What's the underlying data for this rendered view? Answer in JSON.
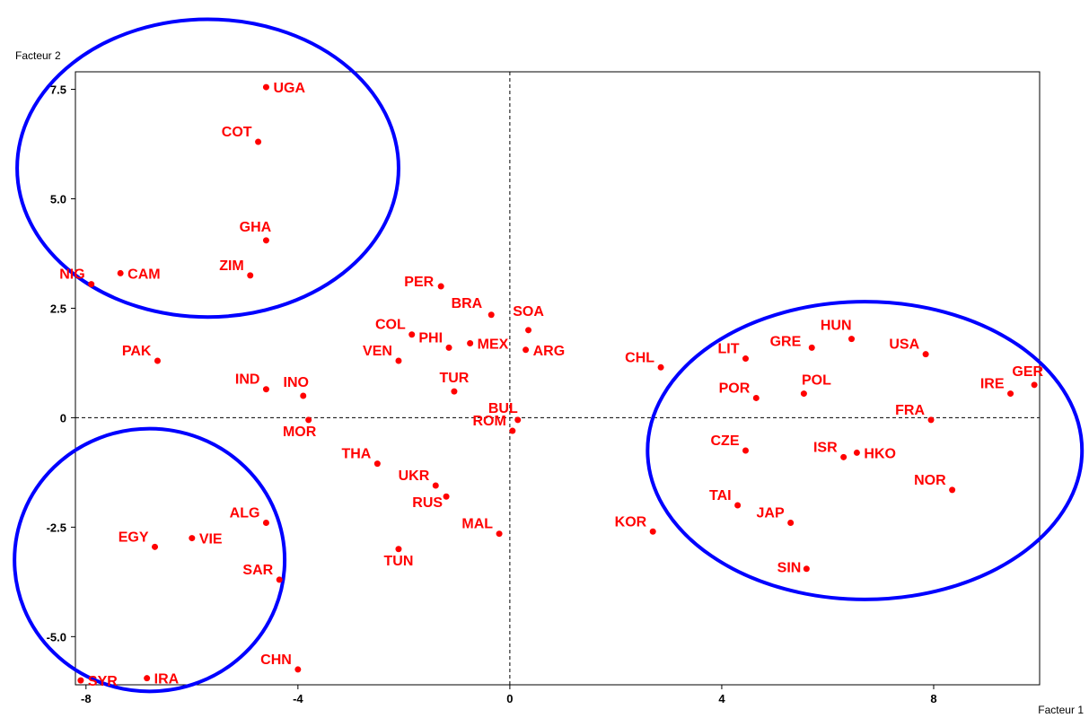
{
  "chart_data": {
    "type": "scatter",
    "title": "",
    "xlabel": "Facteur 1",
    "ylabel": "Facteur 2",
    "xlim": [
      -8.2,
      10
    ],
    "ylim": [
      -6.1,
      7.9
    ],
    "x_ticks": [
      -8,
      -4,
      0,
      4,
      8
    ],
    "x_tick_labels": [
      "-8",
      "-4",
      "0",
      "4",
      "8"
    ],
    "y_ticks": [
      -5,
      -2.5,
      0,
      2.5,
      5,
      7.5
    ],
    "y_tick_labels": [
      "-5.0",
      "-2.5",
      "0",
      "2.5",
      "5.0",
      "7.5"
    ],
    "reference_lines": {
      "x": 0,
      "y": 0,
      "style": "dashed"
    },
    "point_color": "#ff0000",
    "points": [
      {
        "label": "UGA",
        "x": -4.6,
        "y": 7.55
      },
      {
        "label": "COT",
        "x": -4.75,
        "y": 6.3
      },
      {
        "label": "GHA",
        "x": -4.6,
        "y": 4.05
      },
      {
        "label": "ZIM",
        "x": -4.9,
        "y": 3.25
      },
      {
        "label": "CAM",
        "x": -7.35,
        "y": 3.3
      },
      {
        "label": "NIG",
        "x": -7.9,
        "y": 3.05
      },
      {
        "label": "PAK",
        "x": -6.65,
        "y": 1.3
      },
      {
        "label": "IND",
        "x": -4.6,
        "y": 0.65
      },
      {
        "label": "INO",
        "x": -3.9,
        "y": 0.5
      },
      {
        "label": "MOR",
        "x": -3.8,
        "y": -0.05
      },
      {
        "label": "PER",
        "x": -1.3,
        "y": 3.0
      },
      {
        "label": "BRA",
        "x": -0.35,
        "y": 2.35
      },
      {
        "label": "SOA",
        "x": 0.35,
        "y": 2.0
      },
      {
        "label": "COL",
        "x": -1.85,
        "y": 1.9
      },
      {
        "label": "PHI",
        "x": -1.15,
        "y": 1.6
      },
      {
        "label": "MEX",
        "x": -0.75,
        "y": 1.7
      },
      {
        "label": "ARG",
        "x": 0.3,
        "y": 1.55
      },
      {
        "label": "VEN",
        "x": -2.1,
        "y": 1.3
      },
      {
        "label": "TUR",
        "x": -1.05,
        "y": 0.6
      },
      {
        "label": "BUL",
        "x": 0.15,
        "y": -0.05
      },
      {
        "label": "ROM",
        "x": 0.05,
        "y": -0.3
      },
      {
        "label": "THA",
        "x": -2.5,
        "y": -1.05
      },
      {
        "label": "UKR",
        "x": -1.4,
        "y": -1.55
      },
      {
        "label": "RUS",
        "x": -1.2,
        "y": -1.8
      },
      {
        "label": "MAL",
        "x": -0.2,
        "y": -2.65
      },
      {
        "label": "TUN",
        "x": -2.1,
        "y": -3.0
      },
      {
        "label": "ALG",
        "x": -4.6,
        "y": -2.4
      },
      {
        "label": "VIE",
        "x": -6.0,
        "y": -2.75
      },
      {
        "label": "EGY",
        "x": -6.7,
        "y": -2.95
      },
      {
        "label": "SAR",
        "x": -4.35,
        "y": -3.7
      },
      {
        "label": "CHN",
        "x": -4.0,
        "y": -5.75
      },
      {
        "label": "SYR",
        "x": -8.1,
        "y": -6.0
      },
      {
        "label": "IRA",
        "x": -6.85,
        "y": -5.95
      },
      {
        "label": "CHL",
        "x": 2.85,
        "y": 1.15
      },
      {
        "label": "LIT",
        "x": 4.45,
        "y": 1.35
      },
      {
        "label": "GRE",
        "x": 5.7,
        "y": 1.6
      },
      {
        "label": "HUN",
        "x": 6.45,
        "y": 1.8
      },
      {
        "label": "USA",
        "x": 7.85,
        "y": 1.45
      },
      {
        "label": "GER",
        "x": 9.9,
        "y": 0.75
      },
      {
        "label": "IRE",
        "x": 9.45,
        "y": 0.55
      },
      {
        "label": "POL",
        "x": 5.55,
        "y": 0.55
      },
      {
        "label": "POR",
        "x": 4.65,
        "y": 0.45
      },
      {
        "label": "FRA",
        "x": 7.95,
        "y": -0.05
      },
      {
        "label": "CZE",
        "x": 4.45,
        "y": -0.75
      },
      {
        "label": "ISR",
        "x": 6.3,
        "y": -0.9
      },
      {
        "label": "HKO",
        "x": 6.55,
        "y": -0.8
      },
      {
        "label": "NOR",
        "x": 8.35,
        "y": -1.65
      },
      {
        "label": "TAI",
        "x": 4.3,
        "y": -2.0
      },
      {
        "label": "JAP",
        "x": 5.3,
        "y": -2.4
      },
      {
        "label": "KOR",
        "x": 2.7,
        "y": -2.6
      },
      {
        "label": "SIN",
        "x": 5.6,
        "y": -3.45
      }
    ],
    "group_circles": [
      {
        "name": "upper-left",
        "cx": -5.7,
        "cy": 5.7,
        "rx": 3.6,
        "ry": 3.4
      },
      {
        "name": "lower-left",
        "cx": -6.8,
        "cy": -3.25,
        "rx": 2.55,
        "ry": 3.0
      },
      {
        "name": "right",
        "cx": 6.7,
        "cy": -0.75,
        "rx": 4.1,
        "ry": 3.4
      }
    ],
    "circle_color": "#0000ff",
    "grid": false,
    "legend": "none"
  }
}
